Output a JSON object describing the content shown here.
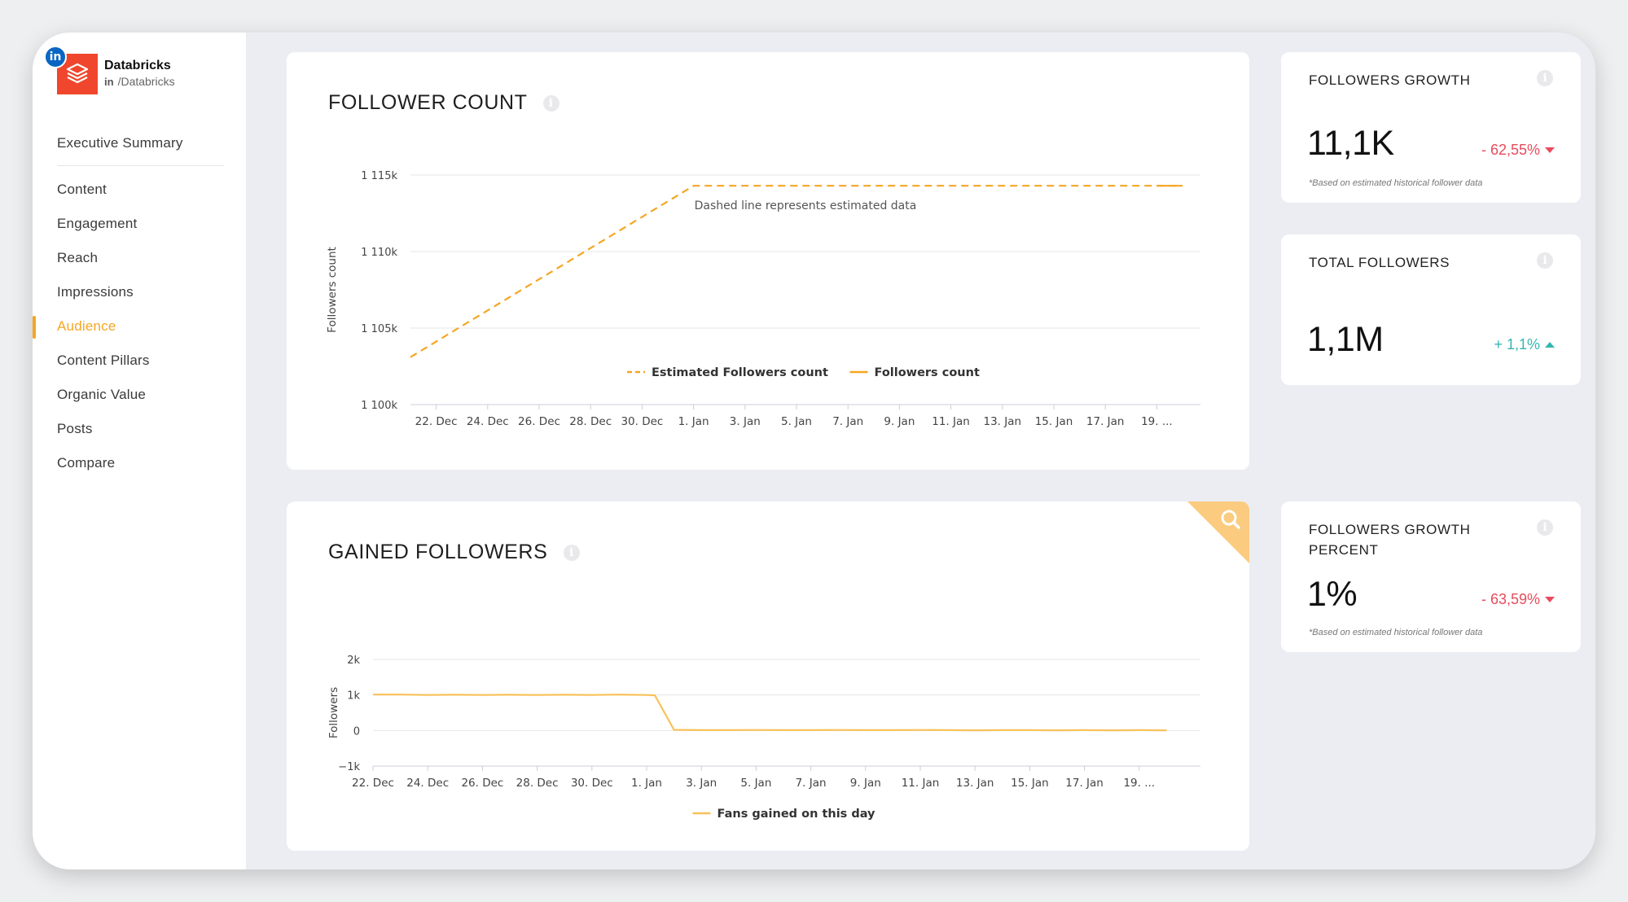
{
  "brand": {
    "name": "Databricks",
    "handle": "/Databricks",
    "li_badge": "in",
    "li_small": "in"
  },
  "nav": {
    "items": [
      {
        "label": "Executive Summary"
      },
      {
        "label": "Content"
      },
      {
        "label": "Engagement"
      },
      {
        "label": "Reach"
      },
      {
        "label": "Impressions"
      },
      {
        "label": "Audience",
        "active": true
      },
      {
        "label": "Content Pillars"
      },
      {
        "label": "Organic Value"
      },
      {
        "label": "Posts"
      },
      {
        "label": "Compare"
      }
    ]
  },
  "colors": {
    "accent": "#f5a623",
    "negative": "#e84b5c",
    "positive": "#35b6b0",
    "brand": "#f0462d"
  },
  "follower_count": {
    "title": "FOLLOWER COUNT",
    "info_icon": "i"
  },
  "gained_followers": {
    "title": "GAINED FOLLOWERS",
    "info_icon": "i"
  },
  "followers_growth": {
    "title": "FOLLOWERS GROWTH",
    "value": "11,1K",
    "change": "- 62,55%",
    "note": "*Based on estimated historical follower data",
    "info_icon": "i"
  },
  "total_followers": {
    "title": "TOTAL FOLLOWERS",
    "value": "1,1M",
    "change": "+ 1,1%",
    "info_icon": "i"
  },
  "followers_growth_percent": {
    "title": "FOLLOWERS GROWTH PERCENT",
    "value": "1%",
    "change": "- 63,59%",
    "note": "*Based on estimated historical follower data",
    "info_icon": "i"
  },
  "chart_data": [
    {
      "type": "line",
      "subtitle": "Dashed line represents estimated data",
      "ylabel": "Followers count",
      "yticks": [
        "1 100k",
        "1 105k",
        "1 110k",
        "1 115k"
      ],
      "ylim": [
        1100000,
        1115000
      ],
      "xticks": [
        "22. Dec",
        "24. Dec",
        "26. Dec",
        "28. Dec",
        "30. Dec",
        "1. Jan",
        "3. Jan",
        "5. Jan",
        "7. Jan",
        "9. Jan",
        "11. Jan",
        "13. Jan",
        "15. Jan",
        "17. Jan",
        "19. ..."
      ],
      "x_start": "21. Dec",
      "series": [
        {
          "name": "Estimated Followers count",
          "style": "dashed",
          "color": "#f5a623",
          "points": [
            [
              0,
              1103100
            ],
            [
              11,
              1114300
            ],
            [
              30,
              1114300
            ]
          ]
        },
        {
          "name": "Followers count",
          "style": "solid",
          "color": "#f5a623",
          "points": [
            [
              29,
              1114300
            ],
            [
              30,
              1114300
            ]
          ]
        }
      ]
    },
    {
      "type": "line",
      "ylabel": "Followers",
      "yticks": [
        "−1k",
        "0",
        "1k",
        "2k"
      ],
      "ylim": [
        -1000,
        2000
      ],
      "xticks": [
        "22. Dec",
        "24. Dec",
        "26. Dec",
        "28. Dec",
        "30. Dec",
        "1. Jan",
        "3. Jan",
        "5. Jan",
        "7. Jan",
        "9. Jan",
        "11. Jan",
        "13. Jan",
        "15. Jan",
        "17. Jan",
        "19. ..."
      ],
      "x_start": "22. Dec",
      "series": [
        {
          "name": "Fans gained on this day",
          "style": "solid",
          "color": "#f9c15a",
          "points": [
            [
              0,
              1010
            ],
            [
              1,
              1010
            ],
            [
              2,
              1000
            ],
            [
              3,
              1005
            ],
            [
              4,
              1000
            ],
            [
              5,
              1005
            ],
            [
              6,
              1000
            ],
            [
              7,
              1005
            ],
            [
              8,
              1000
            ],
            [
              9,
              1010
            ],
            [
              10,
              1000
            ],
            [
              10.3,
              990
            ],
            [
              11,
              20
            ],
            [
              12,
              10
            ],
            [
              13,
              10
            ],
            [
              14,
              15
            ],
            [
              15,
              10
            ],
            [
              16,
              10
            ],
            [
              17,
              15
            ],
            [
              18,
              10
            ],
            [
              19,
              10
            ],
            [
              20,
              15
            ],
            [
              21,
              10
            ],
            [
              22,
              5
            ],
            [
              23,
              10
            ],
            [
              24,
              10
            ],
            [
              25,
              5
            ],
            [
              26,
              10
            ],
            [
              27,
              5
            ],
            [
              28,
              10
            ],
            [
              29,
              5
            ]
          ]
        }
      ]
    }
  ]
}
